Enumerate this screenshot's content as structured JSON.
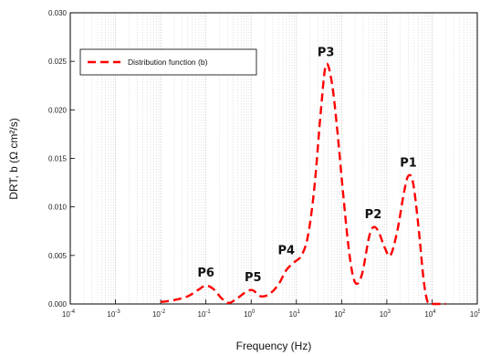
{
  "chart_data": {
    "type": "line",
    "xlabel": "Frequency (Hz)",
    "ylabel": "DRT, b (Ω cm²/s)",
    "x_scale": "log",
    "xlim": [
      0.0001,
      100000
    ],
    "ylim": [
      0,
      0.03
    ],
    "grid": "vertical-minor",
    "x_ticks": [
      {
        "value": 0.0001,
        "base": "10",
        "exp": "-4"
      },
      {
        "value": 0.001,
        "base": "10",
        "exp": "-3"
      },
      {
        "value": 0.01,
        "base": "10",
        "exp": "-2"
      },
      {
        "value": 0.1,
        "base": "10",
        "exp": "-1"
      },
      {
        "value": 1,
        "base": "10",
        "exp": "0"
      },
      {
        "value": 10,
        "base": "10",
        "exp": "1"
      },
      {
        "value": 100,
        "base": "10",
        "exp": "2"
      },
      {
        "value": 1000,
        "base": "10",
        "exp": "3"
      },
      {
        "value": 10000,
        "base": "10",
        "exp": "4"
      },
      {
        "value": 100000,
        "base": "10",
        "exp": "5"
      }
    ],
    "y_ticks": [
      "0.000",
      "0.005",
      "0.010",
      "0.015",
      "0.020",
      "0.025",
      "0.030"
    ],
    "legend": {
      "position": "top-left",
      "entries": [
        "Distribution function (b)"
      ]
    },
    "series": [
      {
        "name": "Distribution function (b)",
        "color": "#ff0000",
        "style": "dashed",
        "points": [
          [
            0.01,
            0.0002
          ],
          [
            0.02,
            0.0004
          ],
          [
            0.04,
            0.0008
          ],
          [
            0.07,
            0.0015
          ],
          [
            0.1,
            0.0019
          ],
          [
            0.15,
            0.0015
          ],
          [
            0.22,
            0.0006
          ],
          [
            0.32,
            0.0001
          ],
          [
            0.5,
            0.0006
          ],
          [
            0.8,
            0.0013
          ],
          [
            1.1,
            0.0014
          ],
          [
            1.6,
            0.0008
          ],
          [
            2.5,
            0.001
          ],
          [
            4,
            0.002
          ],
          [
            6,
            0.0035
          ],
          [
            9,
            0.0043
          ],
          [
            13,
            0.005
          ],
          [
            18,
            0.007
          ],
          [
            25,
            0.012
          ],
          [
            35,
            0.02
          ],
          [
            45,
            0.0246
          ],
          [
            60,
            0.023
          ],
          [
            80,
            0.018
          ],
          [
            110,
            0.011
          ],
          [
            150,
            0.005
          ],
          [
            200,
            0.0022
          ],
          [
            280,
            0.003
          ],
          [
            400,
            0.0068
          ],
          [
            500,
            0.0079
          ],
          [
            650,
            0.0075
          ],
          [
            900,
            0.0058
          ],
          [
            1200,
            0.005
          ],
          [
            1700,
            0.0075
          ],
          [
            2400,
            0.0115
          ],
          [
            3000,
            0.0132
          ],
          [
            3800,
            0.0125
          ],
          [
            5000,
            0.008
          ],
          [
            6500,
            0.0025
          ],
          [
            8000,
            0.0002
          ],
          [
            10000,
            0.0
          ],
          [
            20000,
            0.0
          ]
        ]
      }
    ],
    "annotations": [
      {
        "text": "P1",
        "x": 3000,
        "y": 0.0132
      },
      {
        "text": "P2",
        "x": 500,
        "y": 0.0079
      },
      {
        "text": "P3",
        "x": 45,
        "y": 0.0246
      },
      {
        "text": "P4",
        "x": 6,
        "y": 0.0042
      },
      {
        "text": "P5",
        "x": 1.1,
        "y": 0.0014
      },
      {
        "text": "P6",
        "x": 0.1,
        "y": 0.0019
      }
    ]
  }
}
